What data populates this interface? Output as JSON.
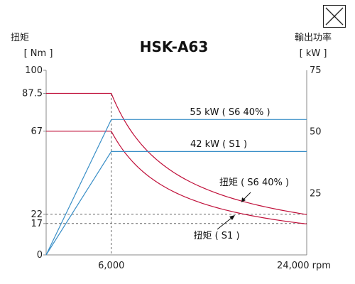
{
  "close_icon": "close-icon",
  "colors": {
    "torque": "#c0103a",
    "power": "#3a8fc7",
    "axis": "#888888",
    "guide": "#666666"
  },
  "chart_data": {
    "type": "line",
    "title": "HSK-A63",
    "y_left": {
      "label_lines": [
        "扭矩",
        "[ Nm ]"
      ],
      "range": [
        0,
        100
      ],
      "tick_labels": [
        {
          "value": 0,
          "text": "0"
        },
        {
          "value": 17,
          "text": "17"
        },
        {
          "value": 22,
          "text": "22"
        },
        {
          "value": 67,
          "text": "67"
        },
        {
          "value": 87.5,
          "text": "87.5"
        },
        {
          "value": 100,
          "text": "100"
        }
      ]
    },
    "y_right": {
      "label_lines": [
        "輸出功率",
        "[ kW ]"
      ],
      "range": [
        0,
        75
      ],
      "tick_labels": [
        {
          "value": 25,
          "text": "25"
        },
        {
          "value": 50,
          "text": "50"
        },
        {
          "value": 75,
          "text": "75"
        }
      ]
    },
    "x": {
      "range": [
        0,
        24000
      ],
      "tick_labels": [
        {
          "value": 6000,
          "text": "6,000"
        },
        {
          "value": 24000,
          "text": "24,000 rpm"
        }
      ]
    },
    "series": [
      {
        "name": "扭矩 ( S6 40% )",
        "kind": "torque",
        "axis": "left",
        "x": [
          0,
          6000,
          8000,
          10000,
          12000,
          14000,
          16000,
          18000,
          20000,
          22000,
          24000
        ],
        "y": [
          87.5,
          87.5,
          65.6,
          52.5,
          43.8,
          37.5,
          32.8,
          29.2,
          26.3,
          23.9,
          22
        ]
      },
      {
        "name": "扭矩 ( S1 )",
        "kind": "torque",
        "axis": "left",
        "x": [
          0,
          6000,
          8000,
          10000,
          12000,
          14000,
          16000,
          18000,
          20000,
          22000,
          24000
        ],
        "y": [
          67,
          67,
          50.1,
          40.1,
          33.4,
          28.6,
          25,
          22.3,
          20,
          18.2,
          17
        ]
      },
      {
        "name": "55 kW ( S6 40% )",
        "kind": "power",
        "axis": "right",
        "x": [
          0,
          6000,
          24000
        ],
        "y": [
          0,
          55,
          55
        ]
      },
      {
        "name": "42 kW ( S1 )",
        "kind": "power",
        "axis": "right",
        "x": [
          0,
          6000,
          24000
        ],
        "y": [
          0,
          42,
          42
        ]
      }
    ],
    "guides": [
      {
        "axis": "left",
        "y": 22
      },
      {
        "axis": "left",
        "y": 17
      },
      {
        "x": 6000
      }
    ],
    "annotations": [
      {
        "text": "55 kW ( S6 40% )"
      },
      {
        "text": "42 kW ( S1 )"
      },
      {
        "text": "扭矩 ( S6 40% )"
      },
      {
        "text": "扭矩 ( S1 )"
      }
    ],
    "grid": false,
    "legend": "none"
  }
}
